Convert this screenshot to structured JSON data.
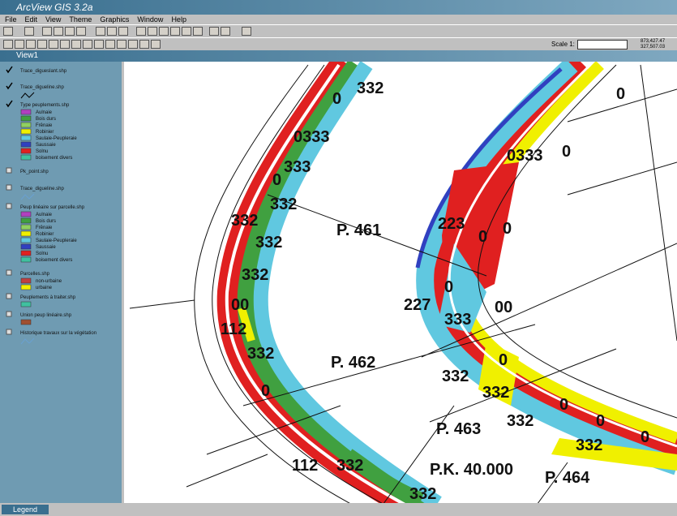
{
  "window": {
    "title": "ArcView GIS 3.2a",
    "menu": [
      "File",
      "Edit",
      "View",
      "Theme",
      "Graphics",
      "Window",
      "Help"
    ],
    "scale_label": "Scale 1:",
    "coordinates": [
      "873,427.47",
      "327,507.03"
    ],
    "view_title": "View1",
    "taskbar_item": "Legend"
  },
  "legend": {
    "themes": [
      {
        "name": "Trace_digueslant.shp"
      },
      {
        "name": "Trace_digueline.shp"
      },
      {
        "name": "Type peuplements.shp",
        "classes": [
          "Aulnaie",
          "Bois durs",
          "Frênaie",
          "Robinier",
          "Saulaie-Peupleraie",
          "Saussaie",
          "Solnu",
          "boisement divers"
        ]
      },
      {
        "name": "Pk_point.shp"
      },
      {
        "name": "Trace_digueline.shp"
      },
      {
        "name": "Peup linéaire sur parcelle.shp",
        "classes": [
          "Aulnaie",
          "Bois durs",
          "Frênaie",
          "Robinier",
          "Saulaie-Peupleraie",
          "Saussaie",
          "Solnu",
          "boisement divers"
        ]
      },
      {
        "name": "Parcelles.shp",
        "classes": [
          "non-urbaine",
          "urbaine"
        ]
      },
      {
        "name": "Peuplements à traiter.shp"
      },
      {
        "name": "Union peup linéaire.shp"
      },
      {
        "name": "Historique travaux sur la végétation"
      }
    ]
  },
  "map": {
    "labels": [
      "332",
      "0",
      "0333",
      "333",
      "0",
      "332",
      "332",
      "332",
      "332",
      "00",
      "112",
      "332",
      "0",
      "112",
      "332",
      "332",
      "P. 461",
      "P. 462",
      "P. 463",
      "P. 464",
      "P.K. 40.000",
      "223",
      "0",
      "0",
      "0333",
      "0",
      "0",
      "227",
      "0",
      "333",
      "00",
      "0",
      "332",
      "332",
      "332",
      "0",
      "0",
      "0",
      "332"
    ]
  }
}
